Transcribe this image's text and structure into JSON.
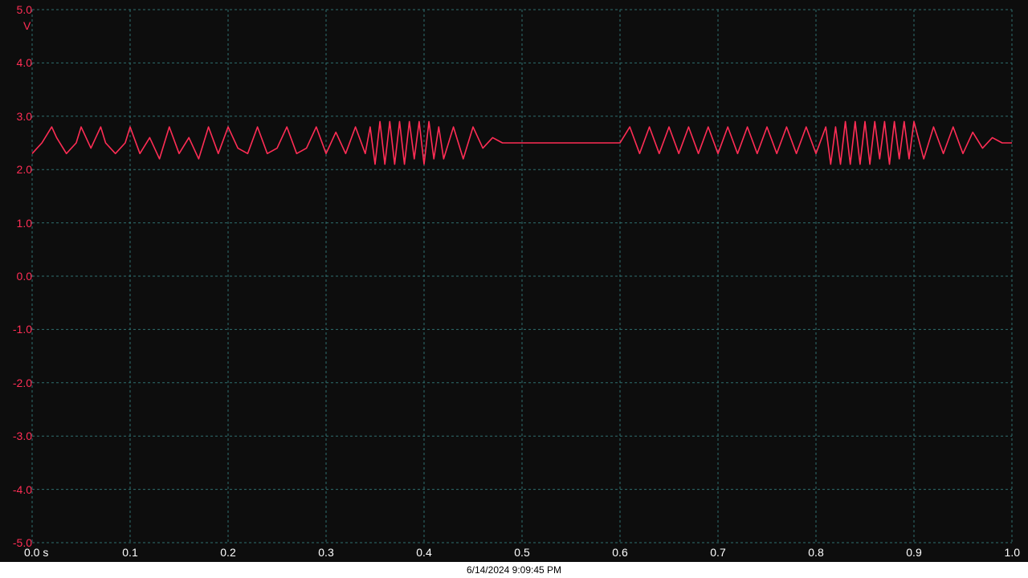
{
  "chart_data": {
    "type": "line",
    "title": "",
    "xlabel": "",
    "ylabel": "",
    "y_unit": "V",
    "x_unit": "s",
    "xlim": [
      0.0,
      1.0
    ],
    "ylim": [
      -5.0,
      5.0
    ],
    "grid": true,
    "x_tick_labels": [
      "0.0 s",
      "0.1",
      "0.2",
      "0.3",
      "0.4",
      "0.5",
      "0.6",
      "0.7",
      "0.8",
      "0.9",
      "1.0"
    ],
    "y_tick_labels": [
      "5.0",
      "4.0",
      "3.0",
      "2.0",
      "1.0",
      "0.0",
      "-1.0",
      "-2.0",
      "-3.0",
      "-4.0",
      "-5.0"
    ],
    "series": [
      {
        "color": "#ff2d55",
        "x": [
          0.0,
          0.01,
          0.02,
          0.025,
          0.035,
          0.045,
          0.05,
          0.06,
          0.07,
          0.075,
          0.085,
          0.095,
          0.1,
          0.11,
          0.12,
          0.13,
          0.14,
          0.15,
          0.16,
          0.17,
          0.18,
          0.19,
          0.2,
          0.21,
          0.22,
          0.23,
          0.24,
          0.25,
          0.26,
          0.27,
          0.28,
          0.29,
          0.3,
          0.31,
          0.32,
          0.33,
          0.34,
          0.345,
          0.35,
          0.355,
          0.36,
          0.365,
          0.37,
          0.375,
          0.38,
          0.385,
          0.39,
          0.395,
          0.4,
          0.405,
          0.41,
          0.415,
          0.42,
          0.43,
          0.44,
          0.45,
          0.46,
          0.47,
          0.48,
          0.5,
          0.55,
          0.6,
          0.61,
          0.62,
          0.63,
          0.64,
          0.65,
          0.66,
          0.67,
          0.68,
          0.69,
          0.7,
          0.71,
          0.72,
          0.73,
          0.74,
          0.75,
          0.76,
          0.77,
          0.78,
          0.79,
          0.8,
          0.81,
          0.815,
          0.82,
          0.825,
          0.83,
          0.835,
          0.84,
          0.845,
          0.85,
          0.855,
          0.86,
          0.865,
          0.87,
          0.875,
          0.88,
          0.885,
          0.89,
          0.895,
          0.9,
          0.91,
          0.92,
          0.93,
          0.94,
          0.95,
          0.96,
          0.97,
          0.98,
          0.99,
          1.0
        ],
        "y": [
          2.3,
          2.5,
          2.8,
          2.6,
          2.3,
          2.5,
          2.8,
          2.4,
          2.8,
          2.5,
          2.3,
          2.5,
          2.8,
          2.3,
          2.6,
          2.2,
          2.8,
          2.3,
          2.6,
          2.2,
          2.8,
          2.3,
          2.8,
          2.4,
          2.3,
          2.8,
          2.3,
          2.4,
          2.8,
          2.3,
          2.4,
          2.8,
          2.3,
          2.7,
          2.3,
          2.8,
          2.3,
          2.8,
          2.1,
          2.9,
          2.1,
          2.9,
          2.1,
          2.9,
          2.1,
          2.9,
          2.2,
          2.9,
          2.1,
          2.9,
          2.2,
          2.8,
          2.2,
          2.8,
          2.2,
          2.8,
          2.4,
          2.6,
          2.5,
          2.5,
          2.5,
          2.5,
          2.8,
          2.3,
          2.8,
          2.3,
          2.8,
          2.3,
          2.8,
          2.3,
          2.8,
          2.3,
          2.8,
          2.3,
          2.8,
          2.3,
          2.8,
          2.3,
          2.8,
          2.3,
          2.8,
          2.3,
          2.8,
          2.1,
          2.8,
          2.1,
          2.9,
          2.1,
          2.9,
          2.1,
          2.9,
          2.1,
          2.9,
          2.2,
          2.9,
          2.1,
          2.9,
          2.2,
          2.9,
          2.2,
          2.9,
          2.2,
          2.8,
          2.3,
          2.8,
          2.3,
          2.7,
          2.4,
          2.6,
          2.5,
          2.5
        ]
      }
    ]
  },
  "footer": {
    "timestamp": "6/14/2024 9:09:45 PM"
  }
}
